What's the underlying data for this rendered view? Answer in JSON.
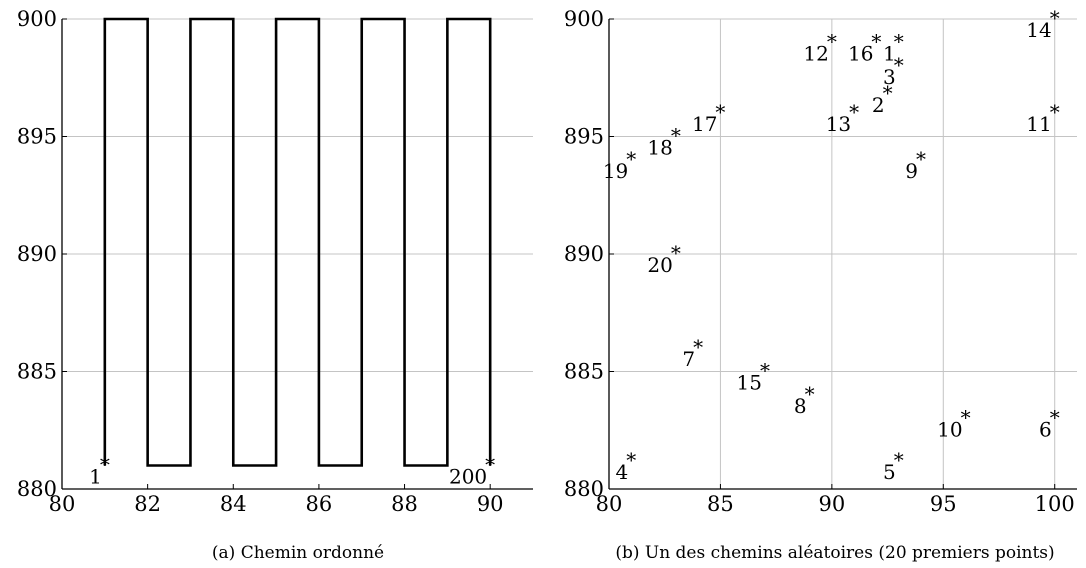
{
  "chart_data": [
    {
      "type": "line",
      "caption": "(a) Chemin ordonné",
      "xlim": [
        80,
        91
      ],
      "ylim": [
        880,
        900
      ],
      "xticks": [
        80,
        82,
        84,
        86,
        88,
        90
      ],
      "yticks": [
        880,
        885,
        890,
        895,
        900
      ],
      "grid": "horizontal",
      "series": [
        {
          "x": [
            81,
            81,
            82,
            82,
            83,
            83,
            84,
            84,
            85,
            85,
            86,
            86,
            87,
            87,
            88,
            88,
            89,
            89,
            90,
            90
          ],
          "y": [
            881,
            900,
            900,
            881,
            881,
            900,
            900,
            881,
            881,
            900,
            900,
            881,
            881,
            900,
            900,
            881,
            881,
            900,
            900,
            881
          ]
        }
      ],
      "points": [
        {
          "label": "1",
          "x": 81,
          "y": 881
        },
        {
          "label": "200",
          "x": 90,
          "y": 881
        }
      ]
    },
    {
      "type": "scatter",
      "caption": "(b) Un des chemins aléatoires (20 premiers points)",
      "xlim": [
        80,
        101
      ],
      "ylim": [
        880,
        900
      ],
      "xticks": [
        80,
        85,
        90,
        95,
        100
      ],
      "yticks": [
        880,
        885,
        890,
        895,
        900
      ],
      "grid": "both",
      "points": [
        {
          "label": "1",
          "x": 93,
          "y": 899
        },
        {
          "label": "2",
          "x": 92.5,
          "y": 896.8
        },
        {
          "label": "3",
          "x": 93,
          "y": 898
        },
        {
          "label": "4",
          "x": 81,
          "y": 881.2
        },
        {
          "label": "5",
          "x": 93,
          "y": 881.2
        },
        {
          "label": "6",
          "x": 100,
          "y": 883
        },
        {
          "label": "7",
          "x": 84,
          "y": 886
        },
        {
          "label": "8",
          "x": 89,
          "y": 884
        },
        {
          "label": "9",
          "x": 94,
          "y": 894
        },
        {
          "label": "10",
          "x": 96,
          "y": 883
        },
        {
          "label": "11",
          "x": 100,
          "y": 896
        },
        {
          "label": "12",
          "x": 90,
          "y": 899
        },
        {
          "label": "13",
          "x": 91,
          "y": 896
        },
        {
          "label": "14",
          "x": 100,
          "y": 900
        },
        {
          "label": "15",
          "x": 87,
          "y": 885
        },
        {
          "label": "16",
          "x": 92,
          "y": 899
        },
        {
          "label": "17",
          "x": 85,
          "y": 896
        },
        {
          "label": "18",
          "x": 83,
          "y": 895
        },
        {
          "label": "19",
          "x": 81,
          "y": 894
        },
        {
          "label": "20",
          "x": 83,
          "y": 890
        }
      ]
    }
  ]
}
